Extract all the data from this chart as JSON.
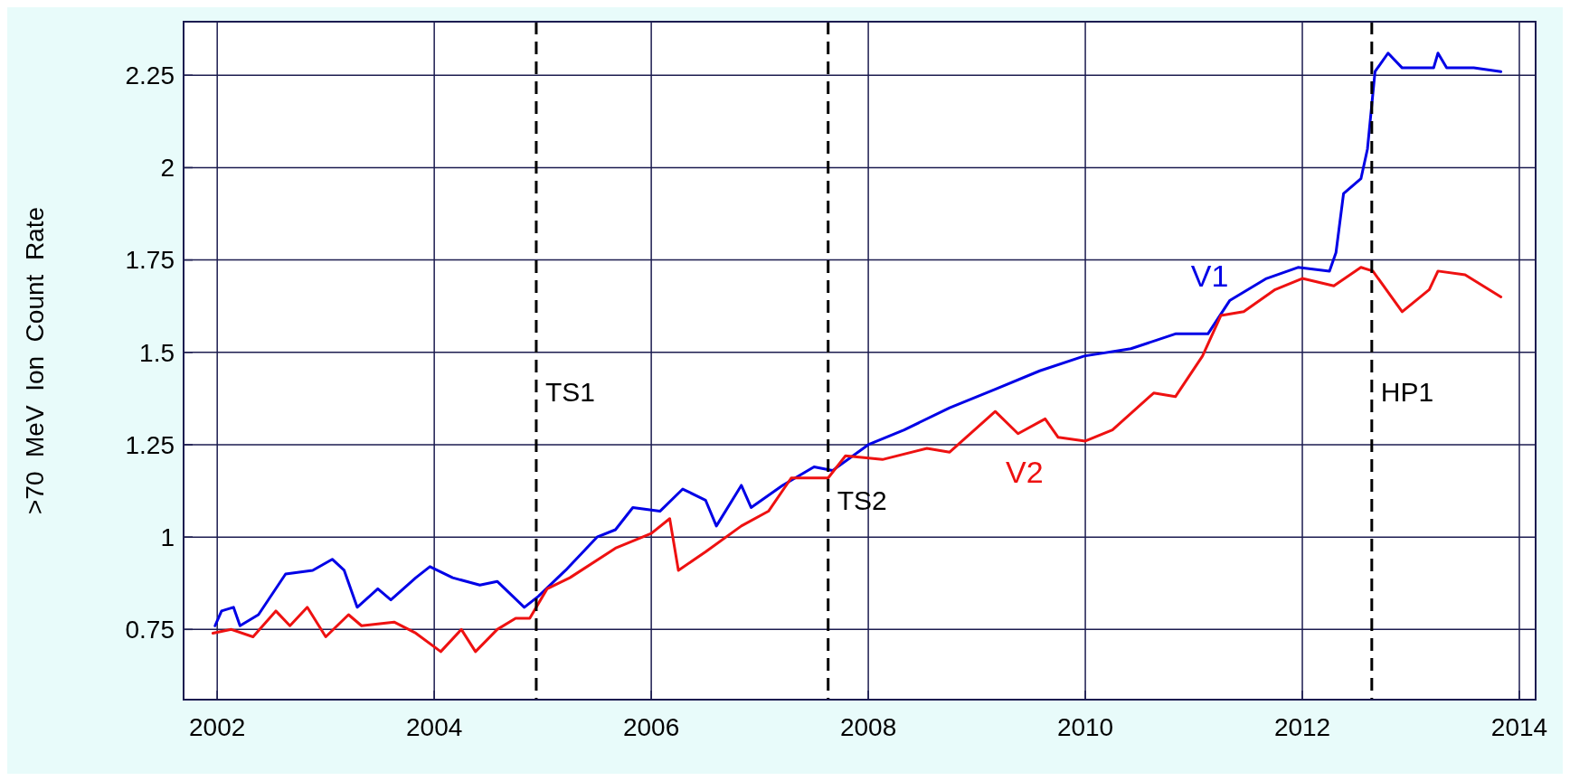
{
  "chart_data": {
    "type": "line",
    "ylabel": ">70  MeV  Ion  Count  Rate",
    "xlim": [
      2001.69,
      2014.15
    ],
    "ylim": [
      0.56,
      2.395
    ],
    "xticks": [
      2002,
      2004,
      2006,
      2008,
      2010,
      2012,
      2014
    ],
    "yticks": [
      0.75,
      1,
      1.25,
      1.5,
      1.75,
      2,
      2.25
    ],
    "grid": true,
    "line_style": "solid",
    "series": [
      {
        "name": "V1",
        "color": "#0000e6",
        "x": [
          2001.98,
          2002.04,
          2002.15,
          2002.21,
          2002.38,
          2002.63,
          2002.88,
          2003.06,
          2003.17,
          2003.29,
          2003.48,
          2003.6,
          2003.83,
          2003.96,
          2004.17,
          2004.42,
          2004.58,
          2004.83,
          2004.96,
          2005.21,
          2005.5,
          2005.67,
          2005.83,
          2006.08,
          2006.29,
          2006.5,
          2006.6,
          2006.83,
          2006.92,
          2007.21,
          2007.5,
          2007.67,
          2008.0,
          2008.33,
          2008.75,
          2009.17,
          2009.58,
          2009.99,
          2010.42,
          2010.83,
          2011.13,
          2011.33,
          2011.67,
          2011.96,
          2012.25,
          2012.31,
          2012.38,
          2012.54,
          2012.6,
          2012.67,
          2012.79,
          2012.92,
          2013.21,
          2013.25,
          2013.33,
          2013.58,
          2013.83
        ],
        "values": [
          0.76,
          0.8,
          0.81,
          0.76,
          0.79,
          0.9,
          0.91,
          0.94,
          0.91,
          0.81,
          0.86,
          0.83,
          0.89,
          0.92,
          0.89,
          0.87,
          0.88,
          0.81,
          0.84,
          0.91,
          1.0,
          1.02,
          1.08,
          1.07,
          1.13,
          1.1,
          1.03,
          1.14,
          1.08,
          1.14,
          1.19,
          1.18,
          1.25,
          1.29,
          1.35,
          1.4,
          1.45,
          1.49,
          1.51,
          1.55,
          1.55,
          1.64,
          1.7,
          1.73,
          1.72,
          1.77,
          1.93,
          1.97,
          2.05,
          2.26,
          2.31,
          2.27,
          2.27,
          2.31,
          2.27,
          2.27,
          2.26
        ]
      },
      {
        "name": "V2",
        "color": "#ee1111",
        "x": [
          2001.96,
          2002.13,
          2002.33,
          2002.54,
          2002.67,
          2002.83,
          2003.0,
          2003.21,
          2003.33,
          2003.63,
          2003.83,
          2004.06,
          2004.25,
          2004.38,
          2004.58,
          2004.75,
          2004.88,
          2005.04,
          2005.25,
          2005.67,
          2006.0,
          2006.17,
          2006.25,
          2006.5,
          2006.83,
          2007.08,
          2007.29,
          2007.63,
          2007.79,
          2008.13,
          2008.54,
          2008.75,
          2009.17,
          2009.38,
          2009.63,
          2009.75,
          2010.0,
          2010.25,
          2010.63,
          2010.83,
          2011.08,
          2011.25,
          2011.46,
          2011.75,
          2012.0,
          2012.29,
          2012.54,
          2012.65,
          2012.92,
          2013.17,
          2013.25,
          2013.5,
          2013.83
        ],
        "values": [
          0.74,
          0.75,
          0.73,
          0.8,
          0.76,
          0.81,
          0.73,
          0.79,
          0.76,
          0.77,
          0.74,
          0.69,
          0.75,
          0.69,
          0.75,
          0.78,
          0.78,
          0.86,
          0.89,
          0.97,
          1.01,
          1.05,
          0.91,
          0.96,
          1.03,
          1.07,
          1.16,
          1.16,
          1.22,
          1.21,
          1.24,
          1.23,
          1.34,
          1.28,
          1.32,
          1.27,
          1.26,
          1.29,
          1.39,
          1.38,
          1.49,
          1.6,
          1.61,
          1.67,
          1.7,
          1.68,
          1.73,
          1.72,
          1.61,
          1.67,
          1.72,
          1.71,
          1.65
        ]
      }
    ],
    "ref_lines": [
      {
        "axis": "x",
        "value": 2004.94,
        "label": "TS1",
        "color": "#000000",
        "line_style": "dashed"
      },
      {
        "axis": "x",
        "value": 2007.63,
        "label": "TS2",
        "color": "#000000",
        "line_style": "dashed"
      },
      {
        "axis": "x",
        "value": 2012.64,
        "label": "HP1",
        "color": "#000000",
        "line_style": "dashed"
      }
    ]
  }
}
